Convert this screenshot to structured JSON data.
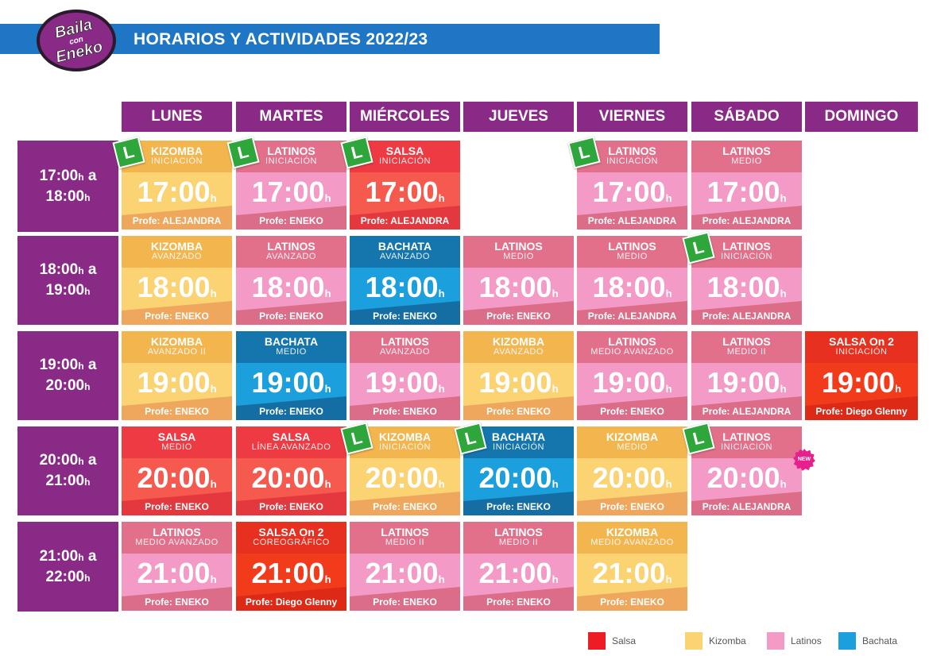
{
  "header": {
    "logo_text": [
      "Baila",
      "con",
      "Eneko"
    ],
    "title": "HORARIOS Y ACTIVIDADES 2022/23"
  },
  "colors": {
    "header": "#1e76c4",
    "purple": "#8a2a87",
    "salsa": "#ee1c24",
    "kizomba": "#fcd373",
    "latinos": "#f49ac7",
    "bachata": "#1b9fdd"
  },
  "days": [
    "LUNES",
    "MARTES",
    "MIÉRCOLES",
    "JUEVES",
    "VIERNES",
    "SÁBADO",
    "DOMINGO"
  ],
  "time_slots": [
    {
      "a": "17:00",
      "b": "18:00"
    },
    {
      "a": "18:00",
      "b": "19:00"
    },
    {
      "a": "19:00",
      "b": "20:00"
    },
    {
      "a": "20:00",
      "b": "21:00"
    },
    {
      "a": "21:00",
      "b": "22:00"
    }
  ],
  "time_labels": {
    "h": "h",
    "a": " a"
  },
  "badges": {
    "beginner": "L",
    "new": "NEW"
  },
  "classes": [
    {
      "day": 0,
      "slot": 0,
      "type": "kizomba",
      "name": "KIZOMBA",
      "level": "INICIACIÓN",
      "time": "17:00",
      "profe": "Profe: ALEJANDRA",
      "beginner": true
    },
    {
      "day": 1,
      "slot": 0,
      "type": "latinos",
      "name": "LATINOS",
      "level": "INICIACIÓN",
      "time": "17:00",
      "profe": "Profe: ENEKO",
      "beginner": true
    },
    {
      "day": 2,
      "slot": 0,
      "type": "salsa",
      "name": "SALSA",
      "level": "INICIACIÓN",
      "time": "17:00",
      "profe": "Profe: ALEJANDRA",
      "beginner": true
    },
    {
      "day": 4,
      "slot": 0,
      "type": "latinos",
      "name": "LATINOS",
      "level": "INICIACIÓN",
      "time": "17:00",
      "profe": "Profe: ALEJANDRA",
      "beginner": true
    },
    {
      "day": 5,
      "slot": 0,
      "type": "latinos",
      "name": "LATINOS",
      "level": "MEDIO",
      "time": "17:00",
      "profe": "Profe: ALEJANDRA"
    },
    {
      "day": 0,
      "slot": 1,
      "type": "kizomba",
      "name": "KIZOMBA",
      "level": "AVANZADO",
      "time": "18:00",
      "profe": "Profe: ENEKO"
    },
    {
      "day": 1,
      "slot": 1,
      "type": "latinos",
      "name": "LATINOS",
      "level": "AVANZADO",
      "time": "18:00",
      "profe": "Profe: ENEKO"
    },
    {
      "day": 2,
      "slot": 1,
      "type": "bachata",
      "name": "BACHATA",
      "level": "AVANZADO",
      "time": "18:00",
      "profe": "Profe: ENEKO"
    },
    {
      "day": 3,
      "slot": 1,
      "type": "latinos",
      "name": "LATINOS",
      "level": "MEDIO",
      "time": "18:00",
      "profe": "Profe: ENEKO"
    },
    {
      "day": 4,
      "slot": 1,
      "type": "latinos",
      "name": "LATINOS",
      "level": "MEDIO",
      "time": "18:00",
      "profe": "Profe: ALEJANDRA"
    },
    {
      "day": 5,
      "slot": 1,
      "type": "latinos",
      "name": "LATINOS",
      "level": "INICIACIÓN",
      "time": "18:00",
      "profe": "Profe: ALEJANDRA",
      "beginner": true
    },
    {
      "day": 0,
      "slot": 2,
      "type": "kizomba",
      "name": "KIZOMBA",
      "level": "AVANZADO II",
      "time": "19:00",
      "profe": "Profe: ENEKO"
    },
    {
      "day": 1,
      "slot": 2,
      "type": "bachata",
      "name": "BACHATA",
      "level": "MEDIO",
      "time": "19:00",
      "profe": "Profe: ENEKO"
    },
    {
      "day": 2,
      "slot": 2,
      "type": "latinos",
      "name": "LATINOS",
      "level": "AVANZADO",
      "time": "19:00",
      "profe": "Profe: ENEKO"
    },
    {
      "day": 3,
      "slot": 2,
      "type": "kizomba",
      "name": "KIZOMBA",
      "level": "AVANZADO",
      "time": "19:00",
      "profe": "Profe: ENEKO"
    },
    {
      "day": 4,
      "slot": 2,
      "type": "latinos",
      "name": "LATINOS",
      "level": "MEDIO AVANZADO",
      "time": "19:00",
      "profe": "Profe: ENEKO"
    },
    {
      "day": 5,
      "slot": 2,
      "type": "latinos",
      "name": "LATINOS",
      "level": "MEDIO II",
      "time": "19:00",
      "profe": "Profe: ALEJANDRA"
    },
    {
      "day": 6,
      "slot": 2,
      "type": "salsa2",
      "name": "SALSA On 2",
      "level": "INICIACIÓN",
      "time": "19:00",
      "profe": "Profe: Diego Glenny"
    },
    {
      "day": 0,
      "slot": 3,
      "type": "salsa",
      "name": "SALSA",
      "level": "MEDIO",
      "time": "20:00",
      "profe": "Profe: ENEKO"
    },
    {
      "day": 1,
      "slot": 3,
      "type": "salsa",
      "name": "SALSA",
      "level": "LÍNEA AVANZADO",
      "time": "20:00",
      "profe": "Profe: ENEKO"
    },
    {
      "day": 2,
      "slot": 3,
      "type": "kizomba",
      "name": "KIZOMBA",
      "level": "INICIACIÓN",
      "time": "20:00",
      "profe": "Profe: ENEKO",
      "beginner": true
    },
    {
      "day": 3,
      "slot": 3,
      "type": "bachata",
      "name": "BACHATA",
      "level": "INICIACIÓN",
      "time": "20:00",
      "profe": "Profe: ENEKO",
      "beginner": true
    },
    {
      "day": 4,
      "slot": 3,
      "type": "kizomba",
      "name": "KIZOMBA",
      "level": "MEDIO",
      "time": "20:00",
      "profe": "Profe: ENEKO"
    },
    {
      "day": 5,
      "slot": 3,
      "type": "latinos",
      "name": "LATINOS",
      "level": "INICIACIÓN",
      "time": "20:00",
      "profe": "Profe: ALEJANDRA",
      "beginner": true,
      "isnew": true
    },
    {
      "day": 0,
      "slot": 4,
      "type": "latinos",
      "name": "LATINOS",
      "level": "MEDIO AVANZADO",
      "time": "21:00",
      "profe": "Profe: ENEKO"
    },
    {
      "day": 1,
      "slot": 4,
      "type": "salsa2",
      "name": "SALSA On 2",
      "level": "COREOGRÁFICO",
      "time": "21:00",
      "profe": "Profe: Diego Glenny"
    },
    {
      "day": 2,
      "slot": 4,
      "type": "latinos",
      "name": "LATINOS",
      "level": "MEDIO II",
      "time": "21:00",
      "profe": "Profe: ENEKO"
    },
    {
      "day": 3,
      "slot": 4,
      "type": "latinos",
      "name": "LATINOS",
      "level": "MEDIO II",
      "time": "21:00",
      "profe": "Profe: ENEKO"
    },
    {
      "day": 4,
      "slot": 4,
      "type": "kizomba",
      "name": "KIZOMBA",
      "level": "MEDIO AVANZADO",
      "time": "21:00",
      "profe": "Profe: ENEKO"
    }
  ],
  "legend": [
    {
      "label": "Salsa",
      "color": "#ee1c24"
    },
    {
      "label": "Kizomba",
      "color": "#fcd373"
    },
    {
      "label": "Latinos",
      "color": "#f49ac7"
    },
    {
      "label": "Bachata",
      "color": "#1b9fdd"
    }
  ]
}
